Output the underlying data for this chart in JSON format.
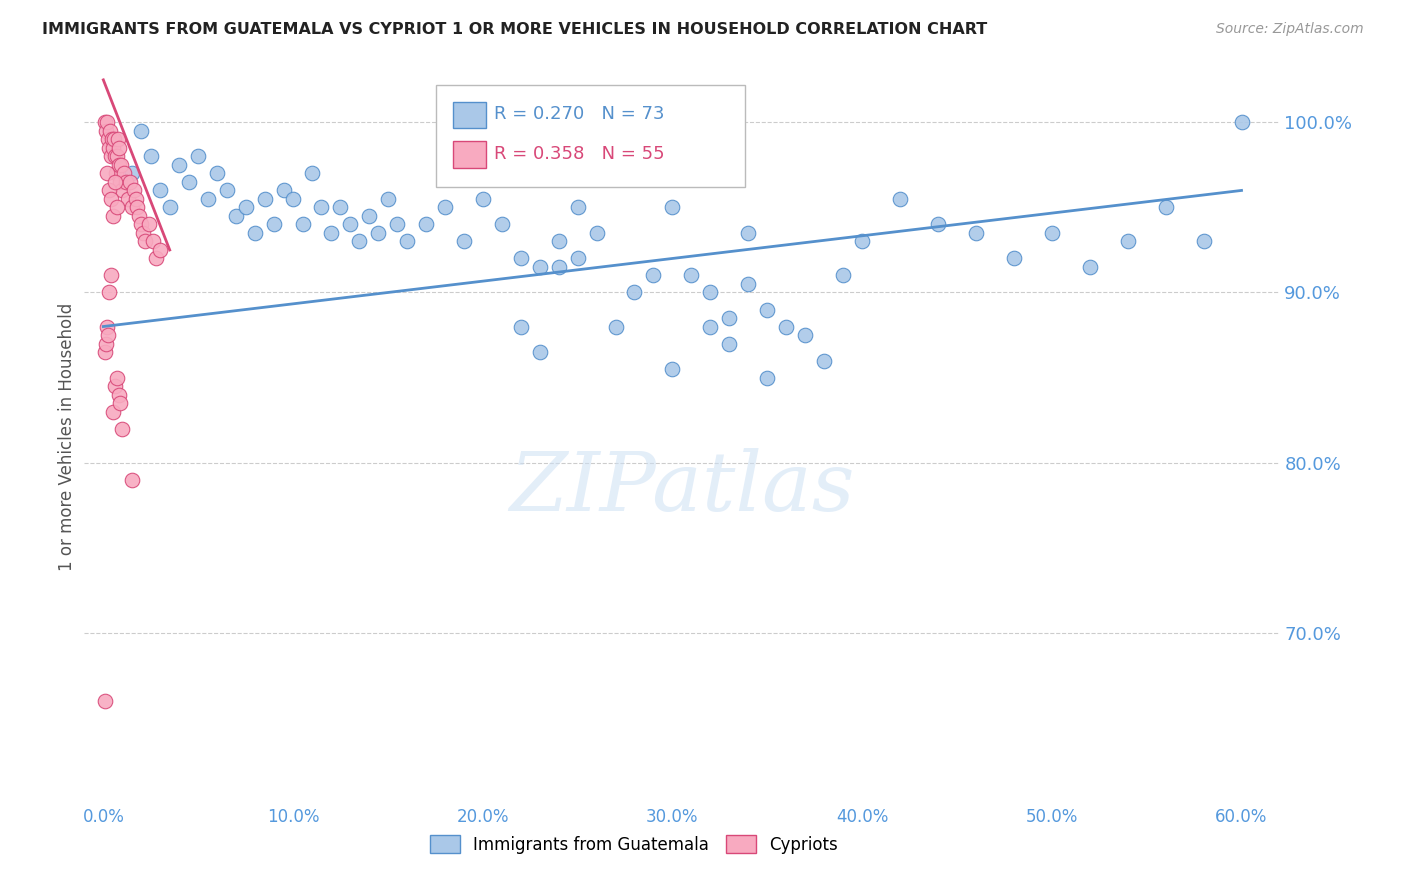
{
  "title": "IMMIGRANTS FROM GUATEMALA VS CYPRIOT 1 OR MORE VEHICLES IN HOUSEHOLD CORRELATION CHART",
  "source": "Source: ZipAtlas.com",
  "ylabel": "1 or more Vehicles in Household",
  "x_tick_labels": [
    "0.0%",
    "10.0%",
    "20.0%",
    "30.0%",
    "40.0%",
    "50.0%",
    "60.0%"
  ],
  "x_tick_vals": [
    0.0,
    10.0,
    20.0,
    30.0,
    40.0,
    50.0,
    60.0
  ],
  "y_tick_labels": [
    "100.0%",
    "90.0%",
    "80.0%",
    "70.0%"
  ],
  "y_tick_vals": [
    100.0,
    90.0,
    80.0,
    70.0
  ],
  "xlim": [
    -1.0,
    62.0
  ],
  "ylim": [
    60.0,
    103.0
  ],
  "blue_R": 0.27,
  "blue_N": 73,
  "pink_R": 0.358,
  "pink_N": 55,
  "blue_color": "#aac8e8",
  "blue_edge_color": "#5590cc",
  "pink_color": "#f8aac0",
  "pink_edge_color": "#d84878",
  "title_color": "#222222",
  "tick_label_color": "#5599dd",
  "ylabel_color": "#555555",
  "legend_blue_label": "Immigrants from Guatemala",
  "legend_pink_label": "Cypriots",
  "watermark": "ZIPatlas",
  "blue_line_x": [
    0.0,
    60.0
  ],
  "blue_line_y": [
    88.0,
    96.0
  ],
  "pink_line_x": [
    0.0,
    3.5
  ],
  "pink_line_y": [
    102.5,
    92.5
  ],
  "blue_scatter_x": [
    1.5,
    2.0,
    2.5,
    3.0,
    3.5,
    4.0,
    4.5,
    5.0,
    5.5,
    6.0,
    6.5,
    7.0,
    7.5,
    8.0,
    8.5,
    9.0,
    9.5,
    10.0,
    10.5,
    11.0,
    11.5,
    12.0,
    12.5,
    13.0,
    13.5,
    14.0,
    14.5,
    15.0,
    15.5,
    16.0,
    17.0,
    18.0,
    19.0,
    20.0,
    21.0,
    22.0,
    23.0,
    24.0,
    25.0,
    26.0,
    27.0,
    28.0,
    29.0,
    30.0,
    31.0,
    32.0,
    33.0,
    34.0,
    35.0,
    36.0,
    37.0,
    38.0,
    39.0,
    40.0,
    42.0,
    44.0,
    46.0,
    48.0,
    50.0,
    52.0,
    54.0,
    56.0,
    58.0,
    60.0,
    22.0,
    23.0,
    24.0,
    25.0,
    30.0,
    32.0,
    33.0,
    34.0,
    35.0
  ],
  "blue_scatter_y": [
    97.0,
    99.5,
    98.0,
    96.0,
    95.0,
    97.5,
    96.5,
    98.0,
    95.5,
    97.0,
    96.0,
    94.5,
    95.0,
    93.5,
    95.5,
    94.0,
    96.0,
    95.5,
    94.0,
    97.0,
    95.0,
    93.5,
    95.0,
    94.0,
    93.0,
    94.5,
    93.5,
    95.5,
    94.0,
    93.0,
    94.0,
    95.0,
    93.0,
    95.5,
    94.0,
    92.0,
    91.5,
    93.0,
    95.0,
    93.5,
    88.0,
    90.0,
    91.0,
    95.0,
    91.0,
    90.0,
    88.5,
    93.5,
    89.0,
    88.0,
    87.5,
    86.0,
    91.0,
    93.0,
    95.5,
    94.0,
    93.5,
    92.0,
    93.5,
    91.5,
    93.0,
    95.0,
    93.0,
    100.0,
    88.0,
    86.5,
    91.5,
    92.0,
    85.5,
    88.0,
    87.0,
    90.5,
    85.0
  ],
  "pink_scatter_x": [
    0.1,
    0.15,
    0.2,
    0.25,
    0.3,
    0.35,
    0.4,
    0.45,
    0.5,
    0.55,
    0.6,
    0.65,
    0.7,
    0.75,
    0.8,
    0.85,
    0.9,
    0.95,
    1.0,
    1.1,
    1.2,
    1.3,
    1.4,
    1.5,
    1.6,
    1.7,
    1.8,
    1.9,
    2.0,
    2.1,
    2.2,
    2.4,
    2.6,
    2.8,
    3.0,
    0.2,
    0.3,
    0.4,
    0.5,
    0.6,
    0.7,
    0.1,
    0.15,
    0.2,
    0.25,
    0.5,
    0.6,
    0.7,
    0.8,
    0.3,
    0.4,
    0.9,
    1.0,
    1.5,
    0.1
  ],
  "pink_scatter_y": [
    100.0,
    99.5,
    100.0,
    99.0,
    98.5,
    99.5,
    98.0,
    99.0,
    98.5,
    99.0,
    98.0,
    97.0,
    98.0,
    99.0,
    97.5,
    98.5,
    96.5,
    97.5,
    96.0,
    97.0,
    96.5,
    95.5,
    96.5,
    95.0,
    96.0,
    95.5,
    95.0,
    94.5,
    94.0,
    93.5,
    93.0,
    94.0,
    93.0,
    92.0,
    92.5,
    97.0,
    96.0,
    95.5,
    94.5,
    96.5,
    95.0,
    86.5,
    87.0,
    88.0,
    87.5,
    83.0,
    84.5,
    85.0,
    84.0,
    90.0,
    91.0,
    83.5,
    82.0,
    79.0,
    66.0
  ]
}
